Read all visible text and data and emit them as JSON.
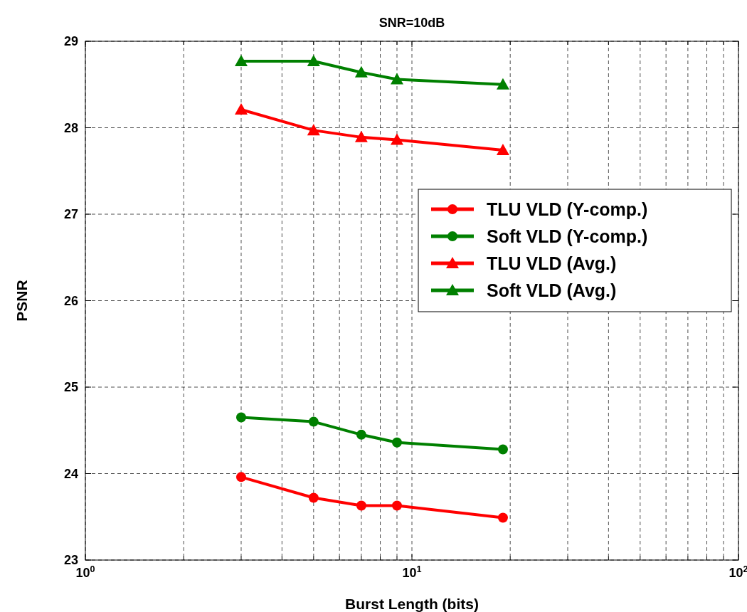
{
  "chart_data": {
    "type": "line",
    "title": "SNR=10dB",
    "xlabel": "Burst Length (bits)",
    "ylabel": "PSNR",
    "log": "x",
    "grid": true,
    "legend": "right",
    "line_style": "solid",
    "xlim": [
      1,
      100
    ],
    "ylim": [
      23,
      29
    ],
    "xticks": [
      {
        "value": 1,
        "label": "10$^{0}$"
      },
      {
        "value": 2,
        "label": null
      },
      {
        "value": 3,
        "label": null
      },
      {
        "value": 4,
        "label": null
      },
      {
        "value": 5,
        "label": null
      },
      {
        "value": 6,
        "label": null
      },
      {
        "value": 7,
        "label": null
      },
      {
        "value": 8,
        "label": null
      },
      {
        "value": 9,
        "label": null
      },
      {
        "value": 10,
        "label": "10$^{1}$"
      },
      {
        "value": 20,
        "label": null
      },
      {
        "value": 30,
        "label": null
      },
      {
        "value": 40,
        "label": null
      },
      {
        "value": 50,
        "label": null
      },
      {
        "value": 60,
        "label": null
      },
      {
        "value": 70,
        "label": null
      },
      {
        "value": 80,
        "label": null
      },
      {
        "value": 90,
        "label": null
      },
      {
        "value": 100,
        "label": "10$^{2}$"
      }
    ],
    "yticks": [
      23,
      24,
      25,
      26,
      27,
      28,
      29
    ],
    "x": [
      3,
      5,
      7,
      9,
      19
    ],
    "series": [
      {
        "name": "TLU VLD (Y-comp.)",
        "color": "#ff0000",
        "marker": "circle",
        "values": [
          23.96,
          23.72,
          23.63,
          23.63,
          23.49
        ]
      },
      {
        "name": "Soft VLD (Y-comp.)",
        "color": "#008000",
        "marker": "circle",
        "values": [
          24.65,
          24.6,
          24.45,
          24.36,
          24.28
        ]
      },
      {
        "name": "TLU VLD (Avg.)",
        "color": "#ff0000",
        "marker": "triangle",
        "values": [
          28.21,
          27.97,
          27.89,
          27.86,
          27.74
        ]
      },
      {
        "name": "Soft VLD (Avg.)",
        "color": "#008000",
        "marker": "triangle",
        "values": [
          28.77,
          28.77,
          28.64,
          28.56,
          28.5
        ]
      }
    ]
  }
}
